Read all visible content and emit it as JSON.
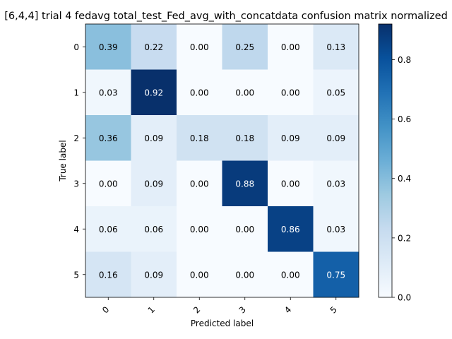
{
  "chart_data": {
    "type": "heatmap",
    "title": "[6,4,4] trial 4 fedavg total_test_Fed_avg_with_concatdata confusion matrix normalized",
    "xlabel": "Predicted label",
    "ylabel": "True label",
    "x_categories": [
      "0",
      "1",
      "2",
      "3",
      "4",
      "5"
    ],
    "y_categories": [
      "0",
      "1",
      "2",
      "3",
      "4",
      "5"
    ],
    "values": [
      [
        0.39,
        0.22,
        0.0,
        0.25,
        0.0,
        0.13
      ],
      [
        0.03,
        0.92,
        0.0,
        0.0,
        0.0,
        0.05
      ],
      [
        0.36,
        0.09,
        0.18,
        0.18,
        0.09,
        0.09
      ],
      [
        0.0,
        0.09,
        0.0,
        0.88,
        0.0,
        0.03
      ],
      [
        0.06,
        0.06,
        0.0,
        0.0,
        0.86,
        0.03
      ],
      [
        0.16,
        0.09,
        0.0,
        0.0,
        0.0,
        0.75
      ]
    ],
    "value_format": "0.00",
    "colormap": "Blues",
    "colorbar": {
      "min": 0.0,
      "max": 0.92,
      "ticks": [
        0.0,
        0.2,
        0.4,
        0.6,
        0.8
      ],
      "tick_labels": [
        "0.0",
        "0.2",
        "0.4",
        "0.6",
        "0.8"
      ]
    },
    "x_tick_rotation": 45,
    "text_color_light": "#ffffff",
    "text_color_dark": "#000000"
  }
}
